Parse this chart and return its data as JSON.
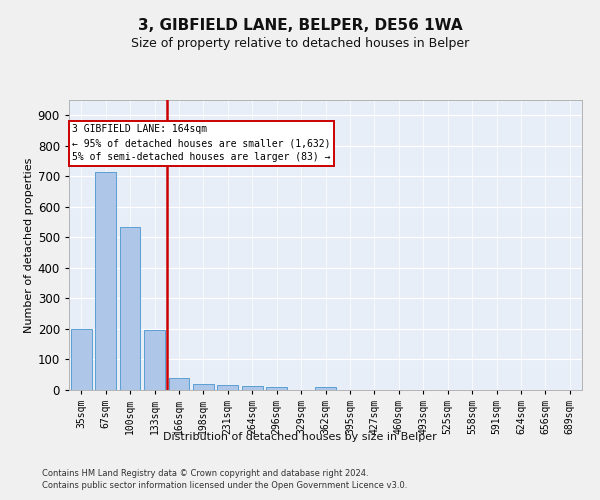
{
  "title": "3, GIBFIELD LANE, BELPER, DE56 1WA",
  "subtitle": "Size of property relative to detached houses in Belper",
  "xlabel": "Distribution of detached houses by size in Belper",
  "ylabel": "Number of detached properties",
  "categories": [
    "35sqm",
    "67sqm",
    "100sqm",
    "133sqm",
    "166sqm",
    "198sqm",
    "231sqm",
    "264sqm",
    "296sqm",
    "329sqm",
    "362sqm",
    "395sqm",
    "427sqm",
    "460sqm",
    "493sqm",
    "525sqm",
    "558sqm",
    "591sqm",
    "624sqm",
    "656sqm",
    "689sqm"
  ],
  "values": [
    200,
    715,
    535,
    195,
    40,
    20,
    15,
    12,
    10,
    0,
    10,
    0,
    0,
    0,
    0,
    0,
    0,
    0,
    0,
    0,
    0
  ],
  "bar_color": "#aec6e8",
  "bar_edge_color": "#5a9fd4",
  "property_label": "3 GIBFIELD LANE: 164sqm",
  "annotation_line1": "← 95% of detached houses are smaller (1,632)",
  "annotation_line2": "5% of semi-detached houses are larger (83) →",
  "vline_x": 3.5,
  "vline_color": "#cc0000",
  "box_color": "#cc0000",
  "ylim": [
    0,
    950
  ],
  "yticks": [
    0,
    100,
    200,
    300,
    400,
    500,
    600,
    700,
    800,
    900
  ],
  "footer_line1": "Contains HM Land Registry data © Crown copyright and database right 2024.",
  "footer_line2": "Contains public sector information licensed under the Open Government Licence v3.0.",
  "bg_color": "#e8eef8",
  "fig_color": "#f0f0f0",
  "grid_color": "#ffffff",
  "title_fontsize": 11,
  "subtitle_fontsize": 9,
  "ylabel_fontsize": 8,
  "xlabel_fontsize": 8,
  "tick_fontsize": 7,
  "annotation_fontsize": 7,
  "footer_fontsize": 6
}
